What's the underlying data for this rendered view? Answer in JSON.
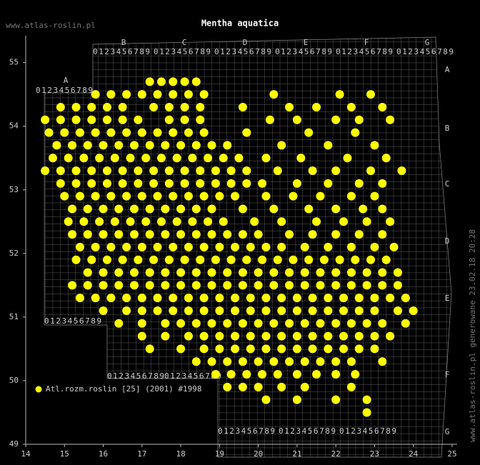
{
  "chart_data": {
    "type": "scatter",
    "title": "Mentha aquatica",
    "site": "www.atlas-roslin.pl",
    "footer": "www.atlas-roslin.pl generowane 23.02.18 20:28",
    "xlim": [
      14,
      25
    ],
    "ylim": [
      49,
      55.4
    ],
    "xticks": [
      14,
      15,
      16,
      17,
      18,
      19,
      20,
      21,
      22,
      23,
      24,
      25
    ],
    "yticks": [
      49,
      50,
      51,
      52,
      53,
      54,
      55
    ],
    "grid_labels": {
      "letters": [
        "A",
        "B",
        "C",
        "D",
        "E",
        "F",
        "G"
      ],
      "digits": "0123456789"
    },
    "series": [
      {
        "name": "Atl.rozm.roslin [25] (2001) #1998",
        "color": "#ffff00",
        "x": [
          17.2,
          17.5,
          17.8,
          18.1,
          18.4,
          15.8,
          16.2,
          16.6,
          17.0,
          17.4,
          17.8,
          18.2,
          18.6,
          20.4,
          22.1,
          22.9,
          14.9,
          15.3,
          15.7,
          16.1,
          16.5,
          17.3,
          17.7,
          18.1,
          18.5,
          19.6,
          20.8,
          21.5,
          22.4,
          23.2,
          14.5,
          14.9,
          15.3,
          15.7,
          16.1,
          16.5,
          16.9,
          17.7,
          18.1,
          18.5,
          20.3,
          21.0,
          22.0,
          22.6,
          23.4,
          14.6,
          15.0,
          15.4,
          15.8,
          16.2,
          16.6,
          17.0,
          17.4,
          17.8,
          18.2,
          18.6,
          19.7,
          21.3,
          22.5,
          14.8,
          15.2,
          15.6,
          16.0,
          16.4,
          16.8,
          17.2,
          17.6,
          18.0,
          18.4,
          18.8,
          19.2,
          20.6,
          21.8,
          23.0,
          14.7,
          15.1,
          15.5,
          15.9,
          16.3,
          16.7,
          17.1,
          17.5,
          17.9,
          18.3,
          18.7,
          19.1,
          19.5,
          20.2,
          21.1,
          22.3,
          23.3,
          14.5,
          14.9,
          15.3,
          15.7,
          16.1,
          16.5,
          16.9,
          17.3,
          17.7,
          18.1,
          18.5,
          18.9,
          19.3,
          19.7,
          20.5,
          21.4,
          22.0,
          22.9,
          23.7,
          14.9,
          15.3,
          15.7,
          16.1,
          16.5,
          16.9,
          17.3,
          17.7,
          18.1,
          18.5,
          18.9,
          19.3,
          19.7,
          20.1,
          21.0,
          21.8,
          22.6,
          23.2,
          15.0,
          15.4,
          15.8,
          16.2,
          16.6,
          17.0,
          17.4,
          17.8,
          18.2,
          18.6,
          19.0,
          19.4,
          20.2,
          20.9,
          21.6,
          22.4,
          23.0,
          15.2,
          15.6,
          16.0,
          16.4,
          16.8,
          17.2,
          17.6,
          18.0,
          18.4,
          18.8,
          19.6,
          20.4,
          21.3,
          22.0,
          22.7,
          23.2,
          15.1,
          15.5,
          15.9,
          16.3,
          16.7,
          17.1,
          17.5,
          17.9,
          18.3,
          18.7,
          19.1,
          19.9,
          20.6,
          21.5,
          22.2,
          22.8,
          23.4,
          15.2,
          15.6,
          16.0,
          16.4,
          16.8,
          17.2,
          17.6,
          18.0,
          18.4,
          18.8,
          19.2,
          19.6,
          20.0,
          20.8,
          21.4,
          22.0,
          22.6,
          23.2,
          15.4,
          15.8,
          16.2,
          16.6,
          17.0,
          17.4,
          17.8,
          18.2,
          18.6,
          19.0,
          19.4,
          19.8,
          20.2,
          20.6,
          21.2,
          21.8,
          22.4,
          23.0,
          23.5,
          15.3,
          15.7,
          16.1,
          16.5,
          16.9,
          17.3,
          17.7,
          18.1,
          18.5,
          18.9,
          19.3,
          19.7,
          20.1,
          20.5,
          20.9,
          21.3,
          21.7,
          22.1,
          22.5,
          22.9,
          23.3,
          15.6,
          16.0,
          16.4,
          16.8,
          17.2,
          17.6,
          18.0,
          18.4,
          18.8,
          19.2,
          19.6,
          20.0,
          20.4,
          20.8,
          21.2,
          21.6,
          22.0,
          22.4,
          22.8,
          23.2,
          23.6,
          15.2,
          15.6,
          16.0,
          16.4,
          16.8,
          17.2,
          17.6,
          18.0,
          18.4,
          18.8,
          19.2,
          19.6,
          20.0,
          20.4,
          20.8,
          21.2,
          21.6,
          22.0,
          22.4,
          22.8,
          23.2,
          23.6,
          15.4,
          15.8,
          16.2,
          16.6,
          17.0,
          17.4,
          17.8,
          18.2,
          18.6,
          19.0,
          19.4,
          19.8,
          20.2,
          20.6,
          21.0,
          21.4,
          21.8,
          22.2,
          22.6,
          23.0,
          23.4,
          23.8,
          16.0,
          16.6,
          17.0,
          17.4,
          17.8,
          18.2,
          18.6,
          19.0,
          19.4,
          19.8,
          20.2,
          20.6,
          21.0,
          21.4,
          21.8,
          22.2,
          22.6,
          23.0,
          23.6,
          24.0,
          16.4,
          17.0,
          17.6,
          18.0,
          18.4,
          18.8,
          19.2,
          19.6,
          20.0,
          20.4,
          20.8,
          21.2,
          21.6,
          22.0,
          22.4,
          22.8,
          23.2,
          23.8,
          17.0,
          17.6,
          18.2,
          18.6,
          19.0,
          19.4,
          19.8,
          20.2,
          20.6,
          21.0,
          21.4,
          21.8,
          22.2,
          22.6,
          23.0,
          23.4,
          17.2,
          18.0,
          18.6,
          19.0,
          19.4,
          19.8,
          20.2,
          20.6,
          21.0,
          21.4,
          21.8,
          22.2,
          22.6,
          23.0,
          18.4,
          18.8,
          19.2,
          19.6,
          20.0,
          20.4,
          20.8,
          21.2,
          21.6,
          22.0,
          22.4,
          23.2,
          18.9,
          19.3,
          19.7,
          20.1,
          20.5,
          21.0,
          21.5,
          22.0,
          22.5,
          19.2,
          19.6,
          20.0,
          20.6,
          21.2,
          22.4,
          20.2,
          21.0,
          22.0,
          22.8,
          22.8
        ],
        "values": [
          54.7,
          54.7,
          54.7,
          54.7,
          54.7,
          54.5,
          54.5,
          54.5,
          54.5,
          54.5,
          54.5,
          54.5,
          54.5,
          54.5,
          54.5,
          54.5,
          54.3,
          54.3,
          54.3,
          54.3,
          54.3,
          54.3,
          54.3,
          54.3,
          54.3,
          54.3,
          54.3,
          54.3,
          54.3,
          54.3,
          54.1,
          54.1,
          54.1,
          54.1,
          54.1,
          54.1,
          54.1,
          54.1,
          54.1,
          54.1,
          54.1,
          54.1,
          54.1,
          54.1,
          54.1,
          53.9,
          53.9,
          53.9,
          53.9,
          53.9,
          53.9,
          53.9,
          53.9,
          53.9,
          53.9,
          53.9,
          53.9,
          53.9,
          53.9,
          53.7,
          53.7,
          53.7,
          53.7,
          53.7,
          53.7,
          53.7,
          53.7,
          53.7,
          53.7,
          53.7,
          53.7,
          53.7,
          53.7,
          53.7,
          53.5,
          53.5,
          53.5,
          53.5,
          53.5,
          53.5,
          53.5,
          53.5,
          53.5,
          53.5,
          53.5,
          53.5,
          53.5,
          53.5,
          53.5,
          53.5,
          53.5,
          53.3,
          53.3,
          53.3,
          53.3,
          53.3,
          53.3,
          53.3,
          53.3,
          53.3,
          53.3,
          53.3,
          53.3,
          53.3,
          53.3,
          53.3,
          53.3,
          53.3,
          53.3,
          53.3,
          53.1,
          53.1,
          53.1,
          53.1,
          53.1,
          53.1,
          53.1,
          53.1,
          53.1,
          53.1,
          53.1,
          53.1,
          53.1,
          53.1,
          53.1,
          53.1,
          53.1,
          53.1,
          52.9,
          52.9,
          52.9,
          52.9,
          52.9,
          52.9,
          52.9,
          52.9,
          52.9,
          52.9,
          52.9,
          52.9,
          52.9,
          52.9,
          52.9,
          52.9,
          52.9,
          52.7,
          52.7,
          52.7,
          52.7,
          52.7,
          52.7,
          52.7,
          52.7,
          52.7,
          52.7,
          52.7,
          52.7,
          52.7,
          52.7,
          52.7,
          52.7,
          52.5,
          52.5,
          52.5,
          52.5,
          52.5,
          52.5,
          52.5,
          52.5,
          52.5,
          52.5,
          52.5,
          52.5,
          52.5,
          52.5,
          52.5,
          52.5,
          52.5,
          52.3,
          52.3,
          52.3,
          52.3,
          52.3,
          52.3,
          52.3,
          52.3,
          52.3,
          52.3,
          52.3,
          52.3,
          52.3,
          52.3,
          52.3,
          52.3,
          52.3,
          52.3,
          52.1,
          52.1,
          52.1,
          52.1,
          52.1,
          52.1,
          52.1,
          52.1,
          52.1,
          52.1,
          52.1,
          52.1,
          52.1,
          52.1,
          52.1,
          52.1,
          52.1,
          52.1,
          52.1,
          51.9,
          51.9,
          51.9,
          51.9,
          51.9,
          51.9,
          51.9,
          51.9,
          51.9,
          51.9,
          51.9,
          51.9,
          51.9,
          51.9,
          51.9,
          51.9,
          51.9,
          51.9,
          51.9,
          51.9,
          51.9,
          51.7,
          51.7,
          51.7,
          51.7,
          51.7,
          51.7,
          51.7,
          51.7,
          51.7,
          51.7,
          51.7,
          51.7,
          51.7,
          51.7,
          51.7,
          51.7,
          51.7,
          51.7,
          51.7,
          51.7,
          51.7,
          51.5,
          51.5,
          51.5,
          51.5,
          51.5,
          51.5,
          51.5,
          51.5,
          51.5,
          51.5,
          51.5,
          51.5,
          51.5,
          51.5,
          51.5,
          51.5,
          51.5,
          51.5,
          51.5,
          51.5,
          51.5,
          51.5,
          51.3,
          51.3,
          51.3,
          51.3,
          51.3,
          51.3,
          51.3,
          51.3,
          51.3,
          51.3,
          51.3,
          51.3,
          51.3,
          51.3,
          51.3,
          51.3,
          51.3,
          51.3,
          51.3,
          51.3,
          51.3,
          51.3,
          51.1,
          51.1,
          51.1,
          51.1,
          51.1,
          51.1,
          51.1,
          51.1,
          51.1,
          51.1,
          51.1,
          51.1,
          51.1,
          51.1,
          51.1,
          51.1,
          51.1,
          51.1,
          51.1,
          51.1,
          50.9,
          50.9,
          50.9,
          50.9,
          50.9,
          50.9,
          50.9,
          50.9,
          50.9,
          50.9,
          50.9,
          50.9,
          50.9,
          50.9,
          50.9,
          50.9,
          50.9,
          50.9,
          50.7,
          50.7,
          50.7,
          50.7,
          50.7,
          50.7,
          50.7,
          50.7,
          50.7,
          50.7,
          50.7,
          50.7,
          50.7,
          50.7,
          50.7,
          50.7,
          50.5,
          50.5,
          50.5,
          50.5,
          50.5,
          50.5,
          50.5,
          50.5,
          50.5,
          50.5,
          50.5,
          50.5,
          50.5,
          50.5,
          50.3,
          50.3,
          50.3,
          50.3,
          50.3,
          50.3,
          50.3,
          50.3,
          50.3,
          50.3,
          50.3,
          50.3,
          50.1,
          50.1,
          50.1,
          50.1,
          50.1,
          50.1,
          50.1,
          50.1,
          50.1,
          49.9,
          49.9,
          49.9,
          49.9,
          49.9,
          49.9,
          49.7,
          49.7,
          49.7,
          49.7,
          49.5
        ]
      }
    ]
  }
}
